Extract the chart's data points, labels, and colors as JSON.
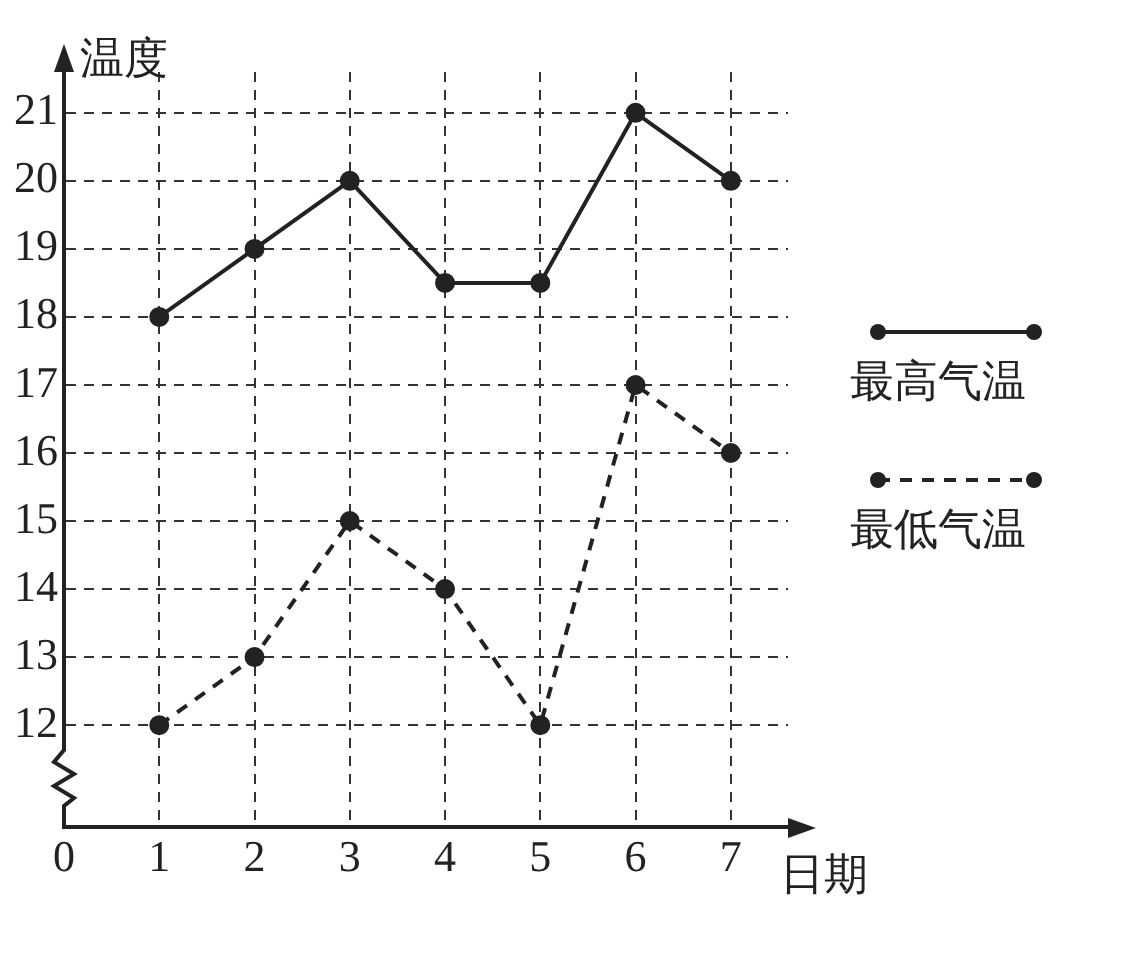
{
  "chart_data": {
    "type": "line",
    "xlabel": "日期",
    "ylabel": "温度",
    "x": [
      1,
      2,
      3,
      4,
      5,
      6,
      7
    ],
    "series": [
      {
        "name": "最高气温",
        "color": "#222222",
        "values": [
          18,
          19,
          20,
          18.5,
          18.5,
          21,
          20
        ],
        "line_style": "solid"
      },
      {
        "name": "最低气温",
        "color": "#222222",
        "values": [
          12,
          13,
          15,
          14,
          12,
          17,
          16
        ],
        "line_style": "dashed"
      }
    ],
    "xlim": [
      0,
      7.6
    ],
    "xticks": [
      0,
      1,
      2,
      3,
      4,
      5,
      6,
      7
    ],
    "ylim": [
      10.5,
      21.6
    ],
    "yticks": [
      12,
      13,
      14,
      15,
      16,
      17,
      18,
      19,
      20,
      21
    ],
    "grid": true,
    "legend": "right",
    "marker": "circle"
  }
}
